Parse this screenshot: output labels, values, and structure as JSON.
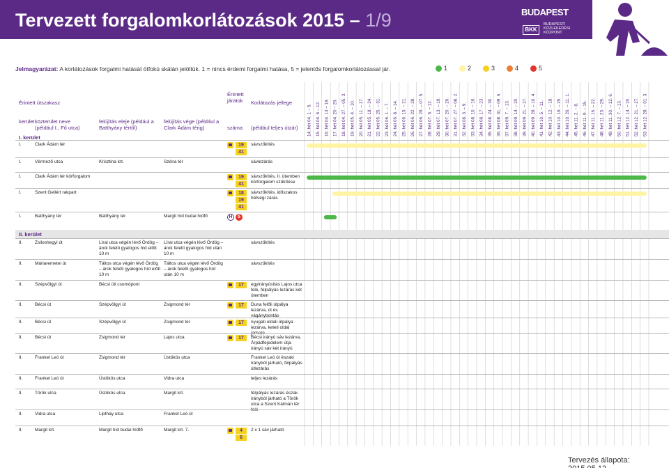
{
  "header": {
    "title": "Tervezett forgalomkorlátozások 2015 –",
    "page": "1/9",
    "brand": "BUDAPEST",
    "agency_short": "BKK",
    "agency_lines": [
      "BUDAPESTI",
      "KÖZLEKEDÉSI",
      "KÖZPONT"
    ]
  },
  "legend": {
    "label": "Jelmagyarázat:",
    "text": "A korlátozások forgalmi hatását ötfokú skálán jelöltük. 1 = nincs érdemi forgalmi hatása, 5 = jelentős forgalomkorlátozással jár.",
    "levels": [
      {
        "label": "1",
        "color": "#4db848"
      },
      {
        "label": "2",
        "color": "#fff4a3"
      },
      {
        "label": "3",
        "color": "#f5d21e"
      },
      {
        "label": "4",
        "color": "#ef7d32"
      },
      {
        "label": "5",
        "color": "#e5332a"
      }
    ]
  },
  "columns": {
    "section": "Érintett útszakasz",
    "routes": "Érintett járatok",
    "restriction": "Korlátozás jellege",
    "district": "kerület",
    "street": "közterület neve (például I., Fő utca)",
    "from": "felújítás eleje (például a Batthyány tértől)",
    "to": "felújítás vége (például a Clark Ádám térig)",
    "routes_number": "száma",
    "restriction_example": "(például teljes útzár)"
  },
  "weeks": [
    "14. hét 04. 1 – 5.",
    "15. hét 04. 6 – 12.",
    "16. hét 04. 13 – 19.",
    "17. hét 04. 20 – 26.",
    "18. hét 04. 27. – 05. 3.",
    "19. hét 05. 4. – 10.",
    "20. hét 05. 11. – 17.",
    "21. hét 05. 18. – 24.",
    "22. hét 05. 25. – 31.",
    "23. hét 06. 1. – 7.",
    "24. hét 06. 8. – 14.",
    "25. hét 06. 15. – 21.",
    "26. hét 06. 22. – 28.",
    "27. hét 06. 29. – 07. 5.",
    "28. hét 07. 6. – 12.",
    "29. hét 07. 13. – 19.",
    "30. hét 07. 20. – 26.",
    "31. hét 07. 27. – 08. 2.",
    "32. hét 08. 3. – 9.",
    "33. hét 08. 10. – 16.",
    "34. hét 08. 17. – 23.",
    "35. hét 08. 24. – 30.",
    "36. hét 08. 31. – 09. 6.",
    "37. hét 09. 7. – 13.",
    "38. hét 09. 14. – 20.",
    "39. hét 09. 21. – 27.",
    "40. hét 09. 28. – 10. 4.",
    "41. hét 10. 5. – 11.",
    "42. hét 10. 12. – 18.",
    "43. hét 10. 19. – 25.",
    "44. hét 10. 26. – 11. 1.",
    "45. hét 11. 2. – 8.",
    "46. hét 11. 9. – 15.",
    "47. hét 11. 16. – 22.",
    "48. hét 11. 23. – 29.",
    "49. hét 11. 30. – 12. 6.",
    "50. hét 12. 7. – 13.",
    "51. hét 12. 14. – 20.",
    "52. hét 12. 21. – 27.",
    "53. hét 12. 28. – 01. 3."
  ],
  "sections": [
    {
      "title": "I. kerület",
      "rows": [
        {
          "district": "I.",
          "street": "Clark Ádám tér",
          "routes": [
            {
              "kind": "bus",
              "numbers": [
                "19",
                "41"
              ]
            }
          ],
          "restriction": "sávszűkítés",
          "bars": [
            {
              "start": 0,
              "end": 39,
              "level": 2
            }
          ]
        },
        {
          "district": "I.",
          "street": "Vérmező utca",
          "from": "Krisztina krt.",
          "to": "Széna tér",
          "restriction": "sávlezárás"
        },
        {
          "district": "I.",
          "street": "Clark Ádám tér körforgalom",
          "routes": [
            {
              "kind": "bus",
              "numbers": [
                "19",
                "41"
              ]
            }
          ],
          "restriction": "sávszűkítés, II. ütemben körforgalom szűkítése",
          "bars": [
            {
              "start": 0,
              "end": 39,
              "level": 1
            }
          ]
        },
        {
          "district": "I.",
          "street": "Szent Gellért rakpart",
          "routes": [
            {
              "kind": "bus",
              "numbers": [
                "18",
                "19",
                "41"
              ]
            }
          ],
          "restriction": "sávszűkítés, időszakos hétvégi zárás",
          "bars": [
            {
              "start": 3,
              "end": 39,
              "level": 2
            }
          ]
        },
        {
          "district": "I.",
          "street": "Batthyány tér",
          "from": "Batthyány tér",
          "to": "Margit híd budai hídfő",
          "routes": [
            {
              "kind": "hev",
              "mode": "H",
              "numbers": [
                "5"
              ]
            }
          ],
          "bars": [
            {
              "start": 2,
              "end": 3,
              "level": 1
            }
          ]
        }
      ]
    },
    {
      "title": "II. kerület",
      "rows": [
        {
          "district": "II.",
          "street": "Zsiloshegyi út",
          "from": "Lírai utca végén lévő Ördög – árok feletti gyalogos híd előtt 10 m",
          "to": "Lírai utca végén lévő Ördög – árok feletti gyalogos híd után 10 m",
          "restriction": "sávszűkítés"
        },
        {
          "district": "II.",
          "street": "Máriaremetei út",
          "from": "Táltos utca végén lévő Ördög – árok feletti gyalogos híd előtt 10 m",
          "to": "Táltos utca végén lévő Ördög – árok feletti gyalogos híd után 10 m",
          "restriction": "sávszűkítés"
        },
        {
          "district": "II.",
          "street": "Szépvölgyi út",
          "from": "Bécsi úti csomópont",
          "routes": [
            {
              "kind": "bus",
              "numbers": [
                "17"
              ]
            }
          ],
          "restriction": "egyirányúsítás Lajos utca felé, félpályás lezárás két ütemben"
        },
        {
          "district": "II.",
          "street": "Bécsi út",
          "from": "Szépvölgyi út",
          "to": "Zsigmond tér",
          "routes": [
            {
              "kind": "tram",
              "numbers": [
                "17"
              ]
            }
          ],
          "restriction": "Duna felőli útpálya lezárva, út és vágánybontás"
        },
        {
          "district": "II.",
          "street": "Bécsi út",
          "from": "Szépvölgyi út",
          "to": "Zsigmond tér",
          "routes": [
            {
              "kind": "tram",
              "numbers": [
                "17"
              ]
            }
          ],
          "restriction": "nyugati oldali útpálya lezárva, keleti oldal járható"
        },
        {
          "district": "II.",
          "street": "Bécsi út",
          "from": "Zsigmond tér",
          "to": "Lajos utca",
          "routes": [
            {
              "kind": "tram",
              "numbers": [
                "17"
              ]
            }
          ],
          "restriction": "Bécsi irányú sáv lezárva, Árpádfejedelem útja irányú sáv két irányú"
        },
        {
          "district": "II.",
          "street": "Frankel Leó út",
          "from": "Zsigmond tér",
          "to": "Üstökös utca",
          "restriction": "Frankel Leó út északi irányból járható, félpályás útlezárás"
        },
        {
          "district": "II.",
          "street": "Frankel Leó út",
          "from": "Üstökös utca",
          "to": "Vidra utca",
          "restriction": "teljes lezárás"
        },
        {
          "district": "II.",
          "street": "Török utca",
          "from": "Üstökös utca",
          "to": "Margit krt.",
          "restriction": "félpályás lezárás észak irányból járható a Török utca a Szent Kálmán tér felé"
        },
        {
          "district": "II.",
          "street": "Vidra utca",
          "from": "Lipthay utca",
          "to": "Frankel Leó út"
        },
        {
          "district": "II.",
          "street": "Margit krt.",
          "from": "Margit híd budai hídfő",
          "to": "Margit krt. 7.",
          "routes": [
            {
              "kind": "tram",
              "numbers": [
                "4",
                "6"
              ]
            }
          ],
          "restriction": "2 x 1 sáv járható"
        }
      ]
    }
  ],
  "footer": "Tervezés állapota: 2015.05.12."
}
